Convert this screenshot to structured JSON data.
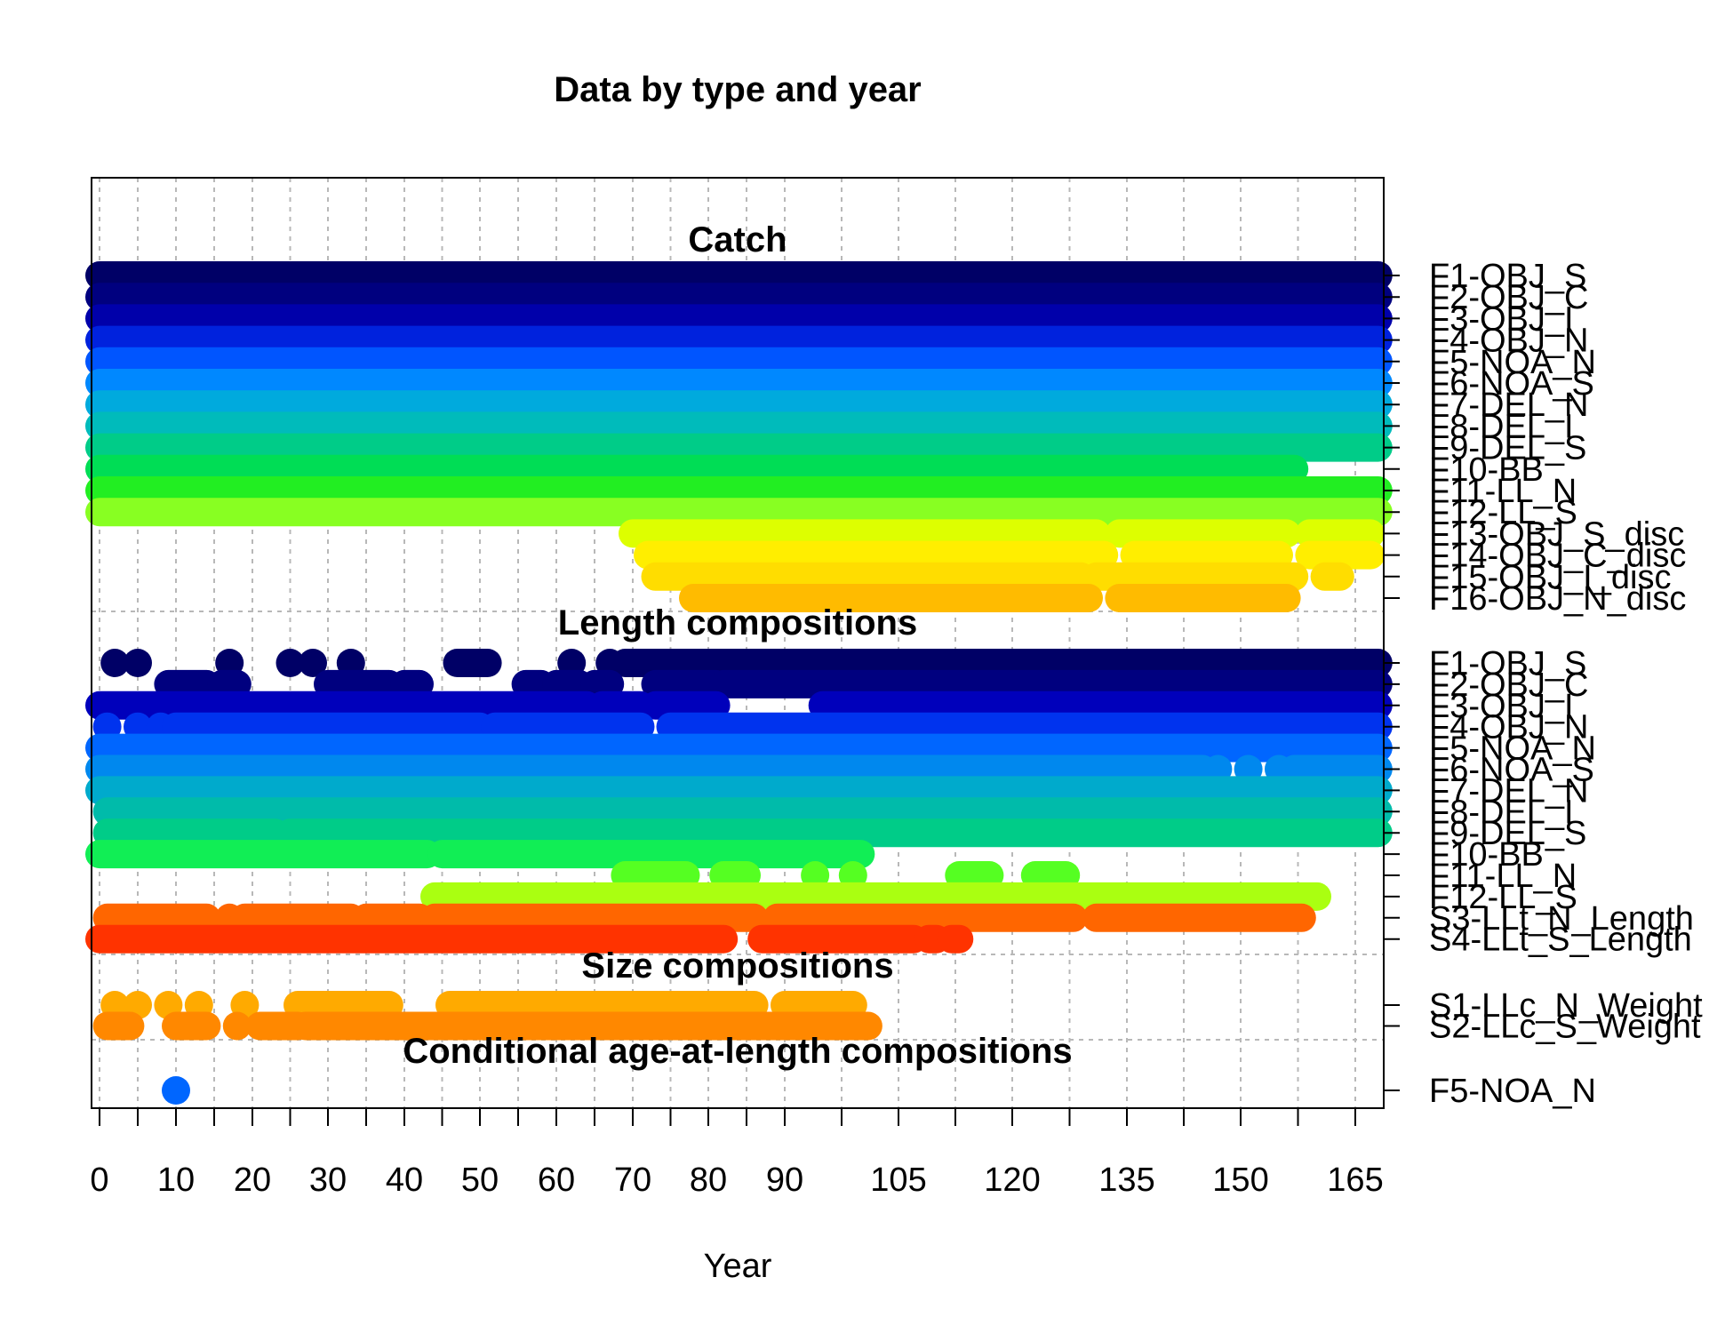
{
  "chart_data": {
    "type": "scatter",
    "title": "Data by type and year",
    "xlabel": "Year",
    "xticks": [
      0,
      10,
      20,
      30,
      40,
      50,
      60,
      70,
      80,
      90,
      105,
      120,
      135,
      150,
      165
    ],
    "xlim": [
      0,
      168
    ],
    "grid": true,
    "panels": [
      {
        "name": "Catch",
        "rows": [
          {
            "name": "F1-OBJ_S",
            "color": "#000066",
            "segments": [
              [
                0,
                168
              ]
            ]
          },
          {
            "name": "F2-OBJ_C",
            "color": "#00007F",
            "segments": [
              [
                0,
                168
              ]
            ]
          },
          {
            "name": "F3-OBJ_I",
            "color": "#0000AA",
            "segments": [
              [
                0,
                168
              ]
            ]
          },
          {
            "name": "F4-OBJ_N",
            "color": "#0022DD",
            "segments": [
              [
                0,
                168
              ]
            ]
          },
          {
            "name": "F5-NOA_N",
            "color": "#0055FF",
            "segments": [
              [
                0,
                168
              ]
            ]
          },
          {
            "name": "F6-NOA_S",
            "color": "#0088FF",
            "segments": [
              [
                0,
                168
              ]
            ]
          },
          {
            "name": "F7-DEL_N",
            "color": "#00AADD",
            "segments": [
              [
                0,
                168
              ]
            ]
          },
          {
            "name": "F8-DEL_I",
            "color": "#00BBBB",
            "segments": [
              [
                0,
                168
              ]
            ]
          },
          {
            "name": "F9-DEL_S",
            "color": "#00CC88",
            "segments": [
              [
                0,
                168
              ]
            ]
          },
          {
            "name": "F10-BB",
            "color": "#00DD55",
            "segments": [
              [
                0,
                157
              ]
            ]
          },
          {
            "name": "F11-LL_N",
            "color": "#22EE22",
            "segments": [
              [
                0,
                168
              ]
            ]
          },
          {
            "name": "F12-LL_S",
            "color": "#88FF22",
            "segments": [
              [
                0,
                168
              ]
            ]
          },
          {
            "name": "F13-OBJ_S_disc",
            "color": "#DDFF00",
            "segments": [
              [
                70,
                131
              ],
              [
                134,
                156
              ],
              [
                159,
                167
              ]
            ]
          },
          {
            "name": "F14-OBJ_C_disc",
            "color": "#FFEE00",
            "segments": [
              [
                72,
                132
              ],
              [
                136,
                155
              ],
              [
                159,
                167
              ]
            ]
          },
          {
            "name": "F15-OBJ_I_disc",
            "color": "#FFDD00",
            "segments": [
              [
                73,
                129
              ],
              [
                131,
                157
              ],
              [
                161,
                163
              ]
            ]
          },
          {
            "name": "F16-OBJ_N_disc",
            "color": "#FFBB00",
            "segments": [
              [
                78,
                130
              ],
              [
                134,
                156
              ]
            ]
          }
        ]
      },
      {
        "name": "Length compositions",
        "rows": [
          {
            "name": "F1-OBJ_S",
            "color": "#000066",
            "segments": [
              [
                2,
                2
              ],
              [
                5,
                5
              ],
              [
                17,
                17
              ],
              [
                25,
                25
              ],
              [
                28,
                28
              ],
              [
                33,
                33
              ],
              [
                47,
                51
              ],
              [
                62,
                62
              ],
              [
                67,
                67
              ],
              [
                69,
                168
              ]
            ]
          },
          {
            "name": "F2-OBJ_C",
            "color": "#00007F",
            "segments": [
              [
                9,
                14
              ],
              [
                16,
                18
              ],
              [
                30,
                38
              ],
              [
                40,
                42
              ],
              [
                56,
                58
              ],
              [
                60,
                63
              ],
              [
                65,
                67
              ],
              [
                73,
                81
              ],
              [
                82,
                168
              ]
            ]
          },
          {
            "name": "F3-OBJ_I",
            "color": "#0000BB",
            "segments": [
              [
                0,
                64
              ],
              [
                66,
                71
              ],
              [
                73,
                81
              ],
              [
                95,
                168
              ]
            ]
          },
          {
            "name": "F4-OBJ_N",
            "color": "#0033EE",
            "segments": [
              [
                1,
                1
              ],
              [
                5,
                5
              ],
              [
                8,
                8
              ],
              [
                10,
                50
              ],
              [
                52,
                71
              ],
              [
                75,
                168
              ]
            ]
          },
          {
            "name": "F5-NOA_N",
            "color": "#0066FF",
            "segments": [
              [
                0,
                168
              ]
            ]
          },
          {
            "name": "F6-NOA_S",
            "color": "#0088EE",
            "segments": [
              [
                0,
                145
              ],
              [
                147,
                147
              ],
              [
                151,
                151
              ],
              [
                155,
                155
              ],
              [
                157,
                168
              ]
            ]
          },
          {
            "name": "F7-DEL_N",
            "color": "#00AACC",
            "segments": [
              [
                0,
                168
              ]
            ]
          },
          {
            "name": "F8-DEL_I",
            "color": "#00BBAA",
            "segments": [
              [
                1,
                168
              ]
            ]
          },
          {
            "name": "F9-DEL_S",
            "color": "#00CC88",
            "segments": [
              [
                1,
                23
              ],
              [
                25,
                168
              ]
            ]
          },
          {
            "name": "F10-BB",
            "color": "#11EE55",
            "segments": [
              [
                0,
                43
              ],
              [
                45,
                100
              ]
            ]
          },
          {
            "name": "F11-LL_N",
            "color": "#55FF22",
            "segments": [
              [
                69,
                77
              ],
              [
                82,
                85
              ],
              [
                94,
                94
              ],
              [
                99,
                99
              ],
              [
                113,
                117
              ],
              [
                123,
                127
              ]
            ]
          },
          {
            "name": "F12-LL_S",
            "color": "#AAFF11",
            "segments": [
              [
                44,
                160
              ]
            ]
          },
          {
            "name": "S3-LLt_N_Length",
            "color": "#FF6600",
            "segments": [
              [
                1,
                14
              ],
              [
                17,
                17
              ],
              [
                19,
                33
              ],
              [
                35,
                42
              ],
              [
                44,
                86
              ],
              [
                89,
                128
              ],
              [
                131,
                158
              ]
            ]
          },
          {
            "name": "S4-LLt_S_Length",
            "color": "#FF3300",
            "segments": [
              [
                0,
                82
              ],
              [
                87,
                107
              ],
              [
                109,
                110
              ],
              [
                112,
                113
              ]
            ]
          }
        ]
      },
      {
        "name": "Size compositions",
        "rows": [
          {
            "name": "S1-LLc_N_Weight",
            "color": "#FFAA00",
            "segments": [
              [
                2,
                2
              ],
              [
                5,
                5
              ],
              [
                9,
                9
              ],
              [
                13,
                13
              ],
              [
                19,
                19
              ],
              [
                26,
                38
              ],
              [
                46,
                86
              ],
              [
                90,
                99
              ]
            ]
          },
          {
            "name": "S2-LLc_S_Weight",
            "color": "#FF8800",
            "segments": [
              [
                1,
                4
              ],
              [
                10,
                14
              ],
              [
                18,
                18
              ],
              [
                21,
                26
              ],
              [
                27,
                101
              ]
            ]
          }
        ]
      },
      {
        "name": "Conditional age-at-length compositions",
        "rows": [
          {
            "name": "F5-NOA_N",
            "color": "#0066FF",
            "segments": [
              [
                10,
                10
              ]
            ]
          }
        ]
      }
    ]
  }
}
